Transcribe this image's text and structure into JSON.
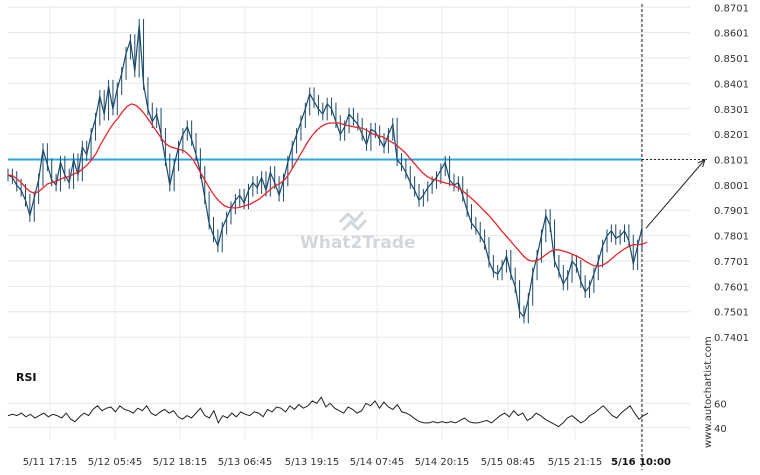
{
  "chart_data": {
    "type": "line",
    "price_axis": {
      "range": [
        0.735,
        0.871
      ],
      "ticks": [
        "0.8701",
        "0.8601",
        "0.8501",
        "0.8401",
        "0.8301",
        "0.8201",
        "0.8101",
        "0.8001",
        "0.7901",
        "0.7801",
        "0.7701",
        "0.7601",
        "0.7501",
        "0.7401"
      ]
    },
    "time_axis": {
      "ticks": [
        "5/11 17:15",
        "5/12 05:45",
        "5/12 18:15",
        "5/13 06:45",
        "5/13 19:15",
        "5/14 07:45",
        "5/14 20:15",
        "5/15 08:45",
        "5/15 21:15",
        "5/16 10:00"
      ],
      "highlighted_tick": "5/16 10:00"
    },
    "level_line": {
      "value": 0.8101,
      "color": "#29a8e0"
    },
    "projection": {
      "from_value": 0.783,
      "to_value": 0.8101,
      "to_time": "5/16 10:00"
    },
    "moving_average_color": "#e8262b",
    "price_color": "#1b4a6b",
    "price_series": [
      [
        0.804,
        0.803,
        0.8,
        0.798,
        0.794,
        0.788,
        0.795,
        0.802,
        0.814,
        0.808,
        0.802,
        0.8,
        0.809,
        0.804,
        0.801,
        0.81,
        0.804,
        0.815,
        0.812,
        0.82,
        0.826,
        0.835,
        0.828,
        0.839,
        0.83,
        0.838,
        0.844,
        0.852,
        0.857,
        0.845,
        0.863,
        0.84,
        0.83,
        0.825,
        0.828,
        0.82,
        0.81,
        0.8,
        0.808,
        0.815,
        0.82,
        0.823,
        0.818,
        0.812,
        0.805,
        0.795,
        0.785,
        0.78,
        0.776,
        0.783,
        0.787,
        0.791,
        0.794,
        0.796,
        0.793,
        0.798,
        0.801,
        0.799,
        0.803,
        0.798,
        0.805,
        0.801,
        0.796,
        0.802,
        0.809,
        0.815,
        0.82,
        0.825,
        0.83,
        0.836,
        0.833,
        0.83,
        0.828,
        0.832,
        0.83,
        0.825,
        0.82,
        0.823,
        0.828,
        0.826,
        0.824,
        0.82,
        0.816,
        0.822,
        0.821,
        0.818,
        0.815,
        0.82,
        0.824,
        0.81,
        0.808,
        0.805,
        0.801,
        0.798,
        0.794,
        0.796,
        0.799,
        0.801,
        0.803,
        0.806,
        0.809,
        0.802,
        0.8,
        0.801,
        0.796,
        0.79,
        0.785,
        0.783,
        0.78,
        0.777,
        0.77,
        0.766,
        0.765,
        0.768,
        0.772,
        0.765,
        0.76,
        0.75,
        0.748,
        0.755,
        0.765,
        0.772,
        0.78,
        0.788,
        0.784,
        0.77,
        0.766,
        0.761,
        0.764,
        0.77,
        0.768,
        0.762,
        0.758,
        0.76,
        0.765,
        0.77,
        0.776,
        0.78,
        0.782,
        0.779,
        0.78,
        0.782,
        0.778,
        0.769,
        0.776,
        0.783
      ]
    ],
    "ma_series": [
      0.804,
      0.8038,
      0.8025,
      0.801,
      0.799,
      0.7975,
      0.7968,
      0.7975,
      0.799,
      0.8005,
      0.801,
      0.8015,
      0.8025,
      0.803,
      0.8035,
      0.8045,
      0.805,
      0.8065,
      0.808,
      0.81,
      0.8125,
      0.816,
      0.819,
      0.822,
      0.8245,
      0.8265,
      0.829,
      0.831,
      0.832,
      0.8315,
      0.83,
      0.828,
      0.8255,
      0.823,
      0.8205,
      0.818,
      0.816,
      0.815,
      0.8145,
      0.814,
      0.8135,
      0.812,
      0.81,
      0.807,
      0.804,
      0.801,
      0.798,
      0.7955,
      0.7935,
      0.792,
      0.7912,
      0.791,
      0.791,
      0.7915,
      0.792,
      0.7925,
      0.7935,
      0.7945,
      0.796,
      0.7975,
      0.799,
      0.8,
      0.801,
      0.8025,
      0.805,
      0.808,
      0.811,
      0.814,
      0.817,
      0.8195,
      0.8215,
      0.823,
      0.824,
      0.8245,
      0.8245,
      0.8245,
      0.824,
      0.8235,
      0.8232,
      0.8228,
      0.8225,
      0.822,
      0.821,
      0.82,
      0.8195,
      0.819,
      0.818,
      0.817,
      0.816,
      0.8145,
      0.813,
      0.811,
      0.809,
      0.807,
      0.805,
      0.8035,
      0.8025,
      0.802,
      0.8015,
      0.801,
      0.8005,
      0.8,
      0.799,
      0.798,
      0.7965,
      0.795,
      0.7935,
      0.7918,
      0.79,
      0.7882,
      0.7862,
      0.7842,
      0.782,
      0.78,
      0.778,
      0.776,
      0.774,
      0.772,
      0.7705,
      0.77,
      0.7702,
      0.7712,
      0.7725,
      0.7738,
      0.7745,
      0.7745,
      0.774,
      0.7735,
      0.7728,
      0.772,
      0.7712,
      0.77,
      0.769,
      0.7682,
      0.768,
      0.7685,
      0.7695,
      0.771,
      0.7725,
      0.7738,
      0.775,
      0.776,
      0.7765,
      0.7765,
      0.7768,
      0.7775
    ],
    "rsi": {
      "label": "RSI",
      "ticks": [
        "60",
        "40"
      ],
      "range": [
        30,
        75
      ],
      "series": [
        50,
        51,
        50,
        52,
        49,
        51,
        48,
        50,
        52,
        49,
        51,
        50,
        48,
        52,
        47,
        45,
        49,
        52,
        50,
        55,
        58,
        54,
        56,
        57,
        53,
        58,
        55,
        54,
        52,
        56,
        54,
        58,
        52,
        50,
        53,
        55,
        52,
        54,
        49,
        47,
        50,
        48,
        52,
        56,
        50,
        48,
        54,
        44,
        50,
        48,
        52,
        49,
        53,
        51,
        50,
        53,
        52,
        49,
        55,
        53,
        57,
        56,
        53,
        58,
        55,
        59,
        56,
        58,
        62,
        60,
        65,
        57,
        60,
        56,
        54,
        52,
        57,
        55,
        52,
        54,
        60,
        58,
        62,
        56,
        61,
        57,
        55,
        59,
        53,
        52,
        50,
        47,
        45,
        44,
        44,
        45,
        44,
        45,
        44,
        45,
        44,
        46,
        48,
        45,
        44,
        44,
        45,
        46,
        44,
        47,
        50,
        52,
        49,
        54,
        50,
        52,
        46,
        48,
        52,
        50,
        47,
        45,
        43,
        41,
        44,
        48,
        50,
        47,
        44,
        46,
        50,
        52,
        55,
        58,
        54,
        50,
        48,
        52,
        55,
        58,
        52,
        47,
        50,
        52
      ]
    },
    "watermark": "What2Trade",
    "credit": "www.autochartist.com"
  }
}
